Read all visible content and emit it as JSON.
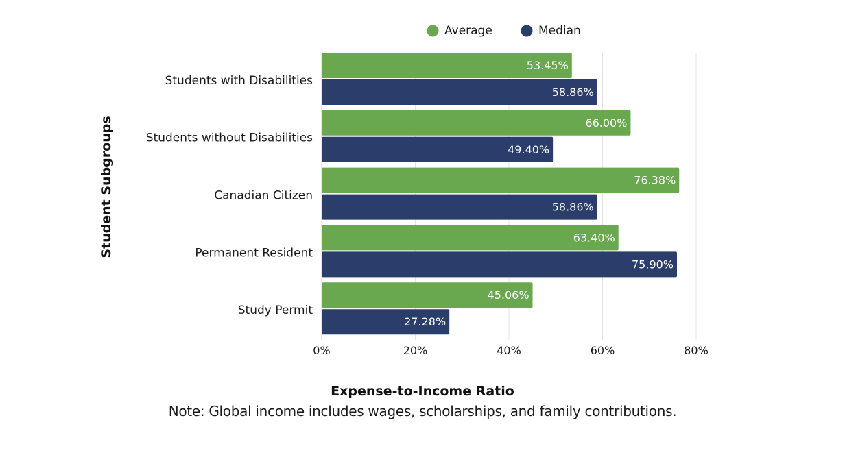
{
  "chart_data": {
    "type": "bar",
    "orientation": "horizontal",
    "categories": [
      "Students with Disabilities",
      "Students without Disabilities",
      "Canadian Citizen",
      "Permanent Resident",
      "Study Permit"
    ],
    "series": [
      {
        "name": "Average",
        "color": "#6aa84f",
        "values": [
          53.45,
          66.0,
          76.38,
          63.4,
          45.06
        ]
      },
      {
        "name": "Median",
        "color": "#2b3d6b",
        "values": [
          58.86,
          49.4,
          58.86,
          75.9,
          27.28
        ]
      }
    ],
    "value_format": "percent_2dp",
    "xlabel": "Expense-to-Income Ratio",
    "ylabel": "Student Subgroups",
    "xlim": [
      0,
      80
    ],
    "xticks": [
      "0%",
      "20%",
      "40%",
      "60%",
      "80%"
    ],
    "grid": "vertical",
    "legend_position": "top",
    "note": "Note: Global income includes wages, scholarships, and family contributions."
  }
}
